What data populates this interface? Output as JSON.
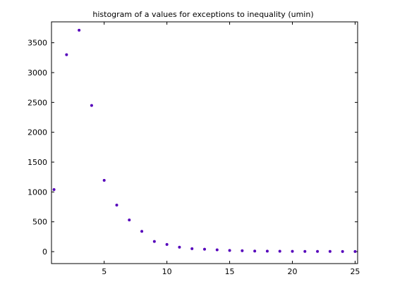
{
  "chart_data": {
    "type": "scatter",
    "title": "histogram of a values for exceptions to inequality (umin)",
    "xlabel": "",
    "ylabel": "",
    "xlim": [
      0.8,
      25.2
    ],
    "ylim": [
      -200,
      3850
    ],
    "xticks": [
      5,
      10,
      15,
      20,
      25
    ],
    "yticks": [
      0,
      500,
      1000,
      1500,
      2000,
      2500,
      3000,
      3500
    ],
    "grid": false,
    "legend": "none",
    "marker_color": "#5500bb",
    "series": [
      {
        "x": [
          1,
          2,
          3,
          4,
          5,
          6,
          7,
          8,
          9,
          10,
          11,
          12,
          13,
          14,
          15,
          16,
          17,
          18,
          19,
          20,
          21,
          22,
          23,
          24,
          25
        ],
        "values": [
          1040,
          3300,
          3710,
          2450,
          1195,
          780,
          530,
          340,
          170,
          120,
          75,
          50,
          40,
          30,
          20,
          15,
          10,
          8,
          6,
          5,
          4,
          3,
          3,
          2,
          2
        ]
      }
    ]
  }
}
